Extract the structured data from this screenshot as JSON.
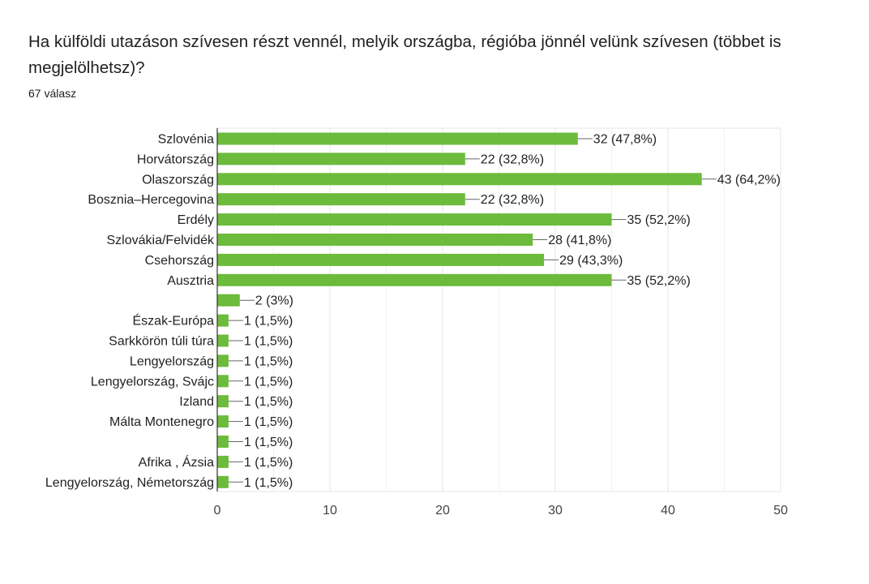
{
  "question": {
    "title": "Ha külföldi utazáson szívesen részt vennél, melyik országba, régióba jönnél velünk szívesen (többet is megjelölhetsz)?",
    "response_count": "67 válasz"
  },
  "colors": {
    "bar": "#6cbb3c",
    "grid": "#e6e6e6",
    "axis": "#333333",
    "leader": "#666666"
  },
  "chart_data": {
    "type": "bar",
    "orientation": "horizontal",
    "title": "",
    "xlabel": "",
    "ylabel": "",
    "xlim": [
      0,
      50
    ],
    "x_ticks": [
      0,
      10,
      20,
      30,
      40,
      50
    ],
    "grid": true,
    "categories": [
      "Szlovénia",
      "Horvátország",
      "Olaszország",
      "Bosznia–Hercegovina",
      "Erdély",
      "Szlovákia/Felvidék",
      "Csehország",
      "Ausztria",
      "",
      "Észak-Európa",
      "Sarkkörön túli túra",
      "Lengyelország",
      "Lengyelország, Svájc",
      "Izland",
      "Málta Montenegro",
      "",
      "Afrika , Ázsia",
      "Lengyelország, Németország"
    ],
    "values": [
      32,
      22,
      43,
      22,
      35,
      28,
      29,
      35,
      2,
      1,
      1,
      1,
      1,
      1,
      1,
      1,
      1,
      1
    ],
    "data_labels": [
      "32 (47,8%)",
      "22 (32,8%)",
      "43 (64,2%)",
      "22 (32,8%)",
      "35 (52,2%)",
      "28 (41,8%)",
      "29 (43,3%)",
      "35 (52,2%)",
      "2 (3%)",
      "1 (1,5%)",
      "1 (1,5%)",
      "1 (1,5%)",
      "1 (1,5%)",
      "1 (1,5%)",
      "1 (1,5%)",
      "1 (1,5%)",
      "1 (1,5%)",
      "1 (1,5%)"
    ]
  }
}
